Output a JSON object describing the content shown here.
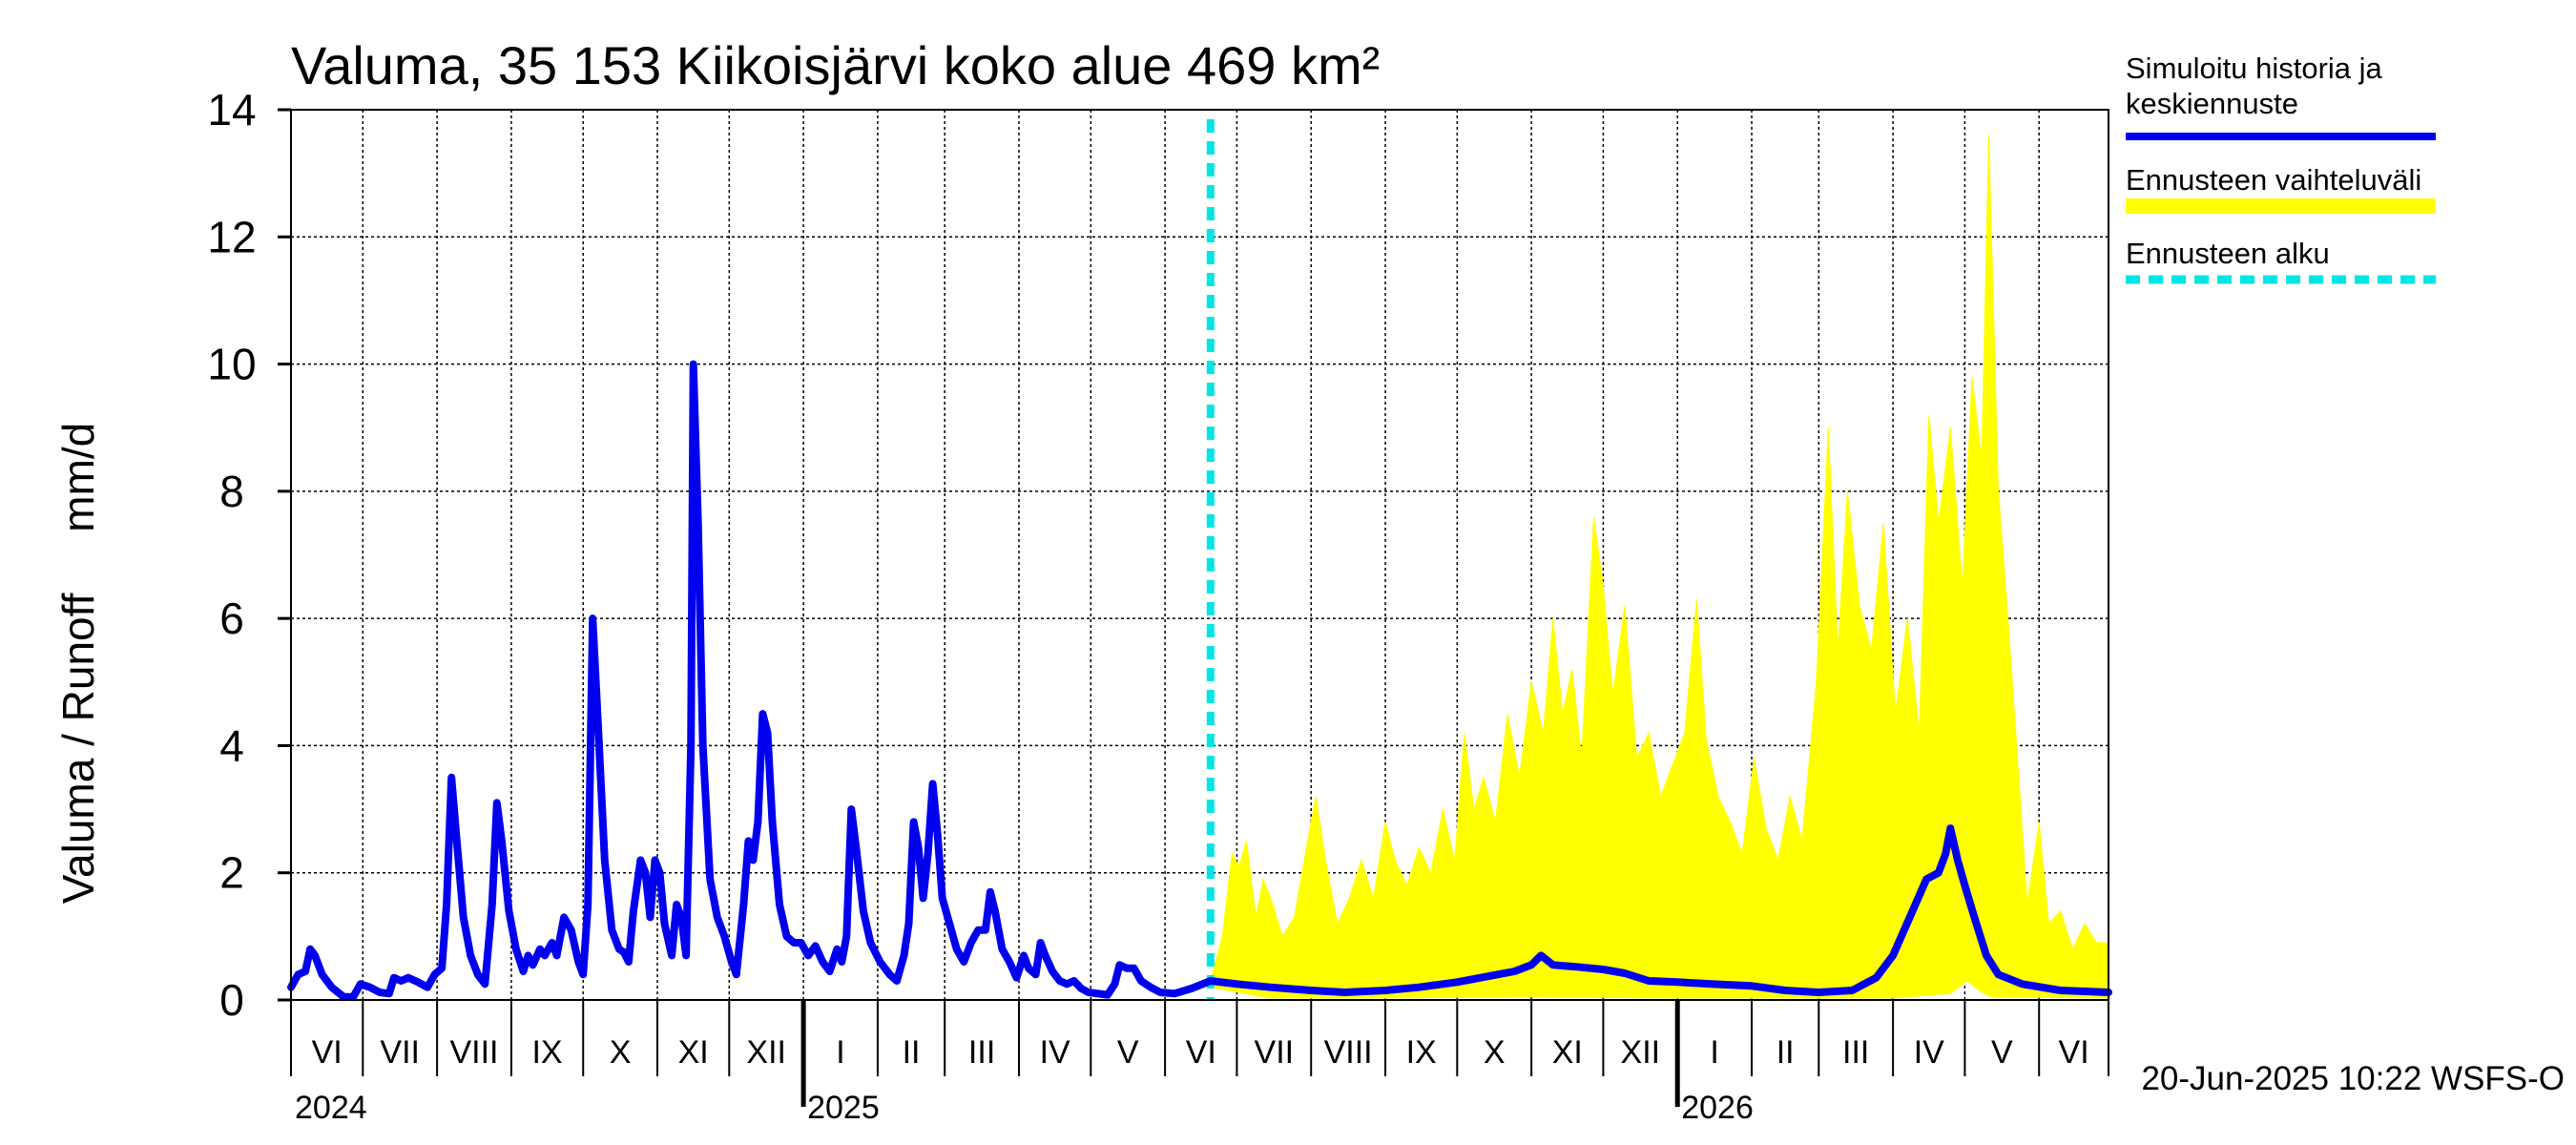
{
  "chart_data": {
    "type": "line",
    "title": "Valuma, 35 153 Kiikoisjärvi koko alue 469 km²",
    "ylabel": "Valuma / Runoff     mm/d",
    "ylim": [
      0,
      14
    ],
    "yticks": [
      0,
      2,
      4,
      6,
      8,
      10,
      12,
      14
    ],
    "xlim": [
      "2024-06-01",
      "2026-06-30"
    ],
    "grid": true,
    "legend_position": "right",
    "months": [
      "VI",
      "VII",
      "VIII",
      "IX",
      "X",
      "XI",
      "XII",
      "I",
      "II",
      "III",
      "IV",
      "V",
      "VI",
      "VII",
      "VIII",
      "IX",
      "X",
      "XI",
      "XII",
      "I",
      "II",
      "III",
      "IV",
      "V",
      "VI"
    ],
    "years": [
      {
        "label": "2024",
        "date": "2024-06-01"
      },
      {
        "label": "2025",
        "date": "2025-01-01"
      },
      {
        "label": "2026",
        "date": "2026-01-01"
      }
    ],
    "forecast_start": "2025-06-20",
    "footer": "20-Jun-2025 10:22 WSFS-O",
    "legend": [
      {
        "label": "Simuloitu historia ja keskiennuste",
        "color": "#0000ee",
        "style": "solid"
      },
      {
        "label": "Ennusteen vaihteluväli",
        "color": "#ffff00",
        "style": "band"
      },
      {
        "label": "Ennusteen alku",
        "color": "#00e5e5",
        "style": "dashed"
      }
    ],
    "series": [
      {
        "name": "Simuloitu historia ja keskiennuste",
        "color": "#0000ee",
        "points": [
          [
            "2024-06-01",
            0.2
          ],
          [
            "2024-06-04",
            0.4
          ],
          [
            "2024-06-07",
            0.45
          ],
          [
            "2024-06-09",
            0.8
          ],
          [
            "2024-06-11",
            0.7
          ],
          [
            "2024-06-14",
            0.4
          ],
          [
            "2024-06-18",
            0.2
          ],
          [
            "2024-06-23",
            0.05
          ],
          [
            "2024-06-27",
            0.05
          ],
          [
            "2024-06-30",
            0.25
          ],
          [
            "2024-07-04",
            0.2
          ],
          [
            "2024-07-08",
            0.12
          ],
          [
            "2024-07-12",
            0.1
          ],
          [
            "2024-07-14",
            0.35
          ],
          [
            "2024-07-17",
            0.3
          ],
          [
            "2024-07-20",
            0.35
          ],
          [
            "2024-07-24",
            0.28
          ],
          [
            "2024-07-28",
            0.2
          ],
          [
            "2024-07-31",
            0.4
          ],
          [
            "2024-08-03",
            0.5
          ],
          [
            "2024-08-05",
            1.5
          ],
          [
            "2024-08-07",
            3.5
          ],
          [
            "2024-08-09",
            2.6
          ],
          [
            "2024-08-12",
            1.3
          ],
          [
            "2024-08-15",
            0.7
          ],
          [
            "2024-08-18",
            0.4
          ],
          [
            "2024-08-21",
            0.25
          ],
          [
            "2024-08-24",
            1.5
          ],
          [
            "2024-08-26",
            3.1
          ],
          [
            "2024-08-28",
            2.5
          ],
          [
            "2024-08-31",
            1.4
          ],
          [
            "2024-09-03",
            0.8
          ],
          [
            "2024-09-06",
            0.45
          ],
          [
            "2024-09-08",
            0.7
          ],
          [
            "2024-09-10",
            0.55
          ],
          [
            "2024-09-13",
            0.8
          ],
          [
            "2024-09-15",
            0.7
          ],
          [
            "2024-09-18",
            0.9
          ],
          [
            "2024-09-20",
            0.7
          ],
          [
            "2024-09-23",
            1.3
          ],
          [
            "2024-09-26",
            1.1
          ],
          [
            "2024-09-29",
            0.6
          ],
          [
            "2024-10-01",
            0.4
          ],
          [
            "2024-10-03",
            1.5
          ],
          [
            "2024-10-05",
            6.0
          ],
          [
            "2024-10-07",
            4.5
          ],
          [
            "2024-10-10",
            2.2
          ],
          [
            "2024-10-13",
            1.1
          ],
          [
            "2024-10-16",
            0.8
          ],
          [
            "2024-10-18",
            0.75
          ],
          [
            "2024-10-20",
            0.6
          ],
          [
            "2024-10-22",
            1.4
          ],
          [
            "2024-10-25",
            2.2
          ],
          [
            "2024-10-27",
            2.0
          ],
          [
            "2024-10-29",
            1.3
          ],
          [
            "2024-10-31",
            2.2
          ],
          [
            "2024-11-02",
            2.0
          ],
          [
            "2024-11-04",
            1.2
          ],
          [
            "2024-11-07",
            0.7
          ],
          [
            "2024-11-09",
            1.5
          ],
          [
            "2024-11-11",
            1.3
          ],
          [
            "2024-11-13",
            0.7
          ],
          [
            "2024-11-15",
            4.0
          ],
          [
            "2024-11-16",
            10.0
          ],
          [
            "2024-11-18",
            7.5
          ],
          [
            "2024-11-20",
            4.0
          ],
          [
            "2024-11-23",
            1.9
          ],
          [
            "2024-11-26",
            1.3
          ],
          [
            "2024-11-29",
            1.0
          ],
          [
            "2024-12-02",
            0.6
          ],
          [
            "2024-12-04",
            0.4
          ],
          [
            "2024-12-07",
            1.5
          ],
          [
            "2024-12-09",
            2.5
          ],
          [
            "2024-12-11",
            2.2
          ],
          [
            "2024-12-13",
            2.8
          ],
          [
            "2024-12-15",
            4.5
          ],
          [
            "2024-12-17",
            4.2
          ],
          [
            "2024-12-19",
            2.8
          ],
          [
            "2024-12-22",
            1.5
          ],
          [
            "2024-12-25",
            1.0
          ],
          [
            "2024-12-28",
            0.9
          ],
          [
            "2024-12-31",
            0.9
          ],
          [
            "2025-01-03",
            0.7
          ],
          [
            "2025-01-06",
            0.85
          ],
          [
            "2025-01-09",
            0.6
          ],
          [
            "2025-01-12",
            0.45
          ],
          [
            "2025-01-15",
            0.8
          ],
          [
            "2025-01-17",
            0.6
          ],
          [
            "2025-01-19",
            1.0
          ],
          [
            "2025-01-21",
            3.0
          ],
          [
            "2025-01-23",
            2.4
          ],
          [
            "2025-01-26",
            1.4
          ],
          [
            "2025-01-29",
            0.9
          ],
          [
            "2025-02-02",
            0.6
          ],
          [
            "2025-02-06",
            0.4
          ],
          [
            "2025-02-09",
            0.3
          ],
          [
            "2025-02-12",
            0.7
          ],
          [
            "2025-02-14",
            1.2
          ],
          [
            "2025-02-16",
            2.8
          ],
          [
            "2025-02-18",
            2.4
          ],
          [
            "2025-02-20",
            1.6
          ],
          [
            "2025-02-22",
            2.3
          ],
          [
            "2025-02-24",
            3.4
          ],
          [
            "2025-02-26",
            2.6
          ],
          [
            "2025-02-28",
            1.6
          ],
          [
            "2025-03-03",
            1.2
          ],
          [
            "2025-03-06",
            0.8
          ],
          [
            "2025-03-09",
            0.6
          ],
          [
            "2025-03-12",
            0.9
          ],
          [
            "2025-03-15",
            1.1
          ],
          [
            "2025-03-18",
            1.1
          ],
          [
            "2025-03-20",
            1.7
          ],
          [
            "2025-03-22",
            1.4
          ],
          [
            "2025-03-25",
            0.8
          ],
          [
            "2025-03-28",
            0.6
          ],
          [
            "2025-03-31",
            0.35
          ],
          [
            "2025-04-03",
            0.7
          ],
          [
            "2025-04-05",
            0.5
          ],
          [
            "2025-04-08",
            0.4
          ],
          [
            "2025-04-10",
            0.9
          ],
          [
            "2025-04-12",
            0.7
          ],
          [
            "2025-04-15",
            0.45
          ],
          [
            "2025-04-18",
            0.3
          ],
          [
            "2025-04-21",
            0.25
          ],
          [
            "2025-04-24",
            0.3
          ],
          [
            "2025-04-27",
            0.18
          ],
          [
            "2025-04-30",
            0.12
          ],
          [
            "2025-05-04",
            0.1
          ],
          [
            "2025-05-08",
            0.08
          ],
          [
            "2025-05-11",
            0.25
          ],
          [
            "2025-05-13",
            0.55
          ],
          [
            "2025-05-16",
            0.5
          ],
          [
            "2025-05-19",
            0.5
          ],
          [
            "2025-05-22",
            0.3
          ],
          [
            "2025-05-26",
            0.2
          ],
          [
            "2025-05-30",
            0.12
          ],
          [
            "2025-06-05",
            0.1
          ],
          [
            "2025-06-12",
            0.18
          ],
          [
            "2025-06-20",
            0.3
          ],
          [
            "2025-07-01",
            0.25
          ],
          [
            "2025-07-15",
            0.2
          ],
          [
            "2025-08-01",
            0.15
          ],
          [
            "2025-08-15",
            0.12
          ],
          [
            "2025-09-01",
            0.15
          ],
          [
            "2025-09-15",
            0.2
          ],
          [
            "2025-10-01",
            0.28
          ],
          [
            "2025-10-15",
            0.38
          ],
          [
            "2025-10-25",
            0.45
          ],
          [
            "2025-11-01",
            0.55
          ],
          [
            "2025-11-05",
            0.7
          ],
          [
            "2025-11-10",
            0.55
          ],
          [
            "2025-11-20",
            0.52
          ],
          [
            "2025-12-01",
            0.48
          ],
          [
            "2025-12-10",
            0.42
          ],
          [
            "2025-12-20",
            0.3
          ],
          [
            "2026-01-01",
            0.28
          ],
          [
            "2026-01-15",
            0.25
          ],
          [
            "2026-02-01",
            0.22
          ],
          [
            "2026-02-15",
            0.15
          ],
          [
            "2026-03-01",
            0.12
          ],
          [
            "2026-03-15",
            0.15
          ],
          [
            "2026-03-25",
            0.35
          ],
          [
            "2026-04-01",
            0.7
          ],
          [
            "2026-04-08",
            1.3
          ],
          [
            "2026-04-15",
            1.9
          ],
          [
            "2026-04-20",
            2.0
          ],
          [
            "2026-04-23",
            2.3
          ],
          [
            "2026-04-25",
            2.7
          ],
          [
            "2026-04-28",
            2.2
          ],
          [
            "2026-05-01",
            1.8
          ],
          [
            "2026-05-05",
            1.3
          ],
          [
            "2026-05-10",
            0.7
          ],
          [
            "2026-05-15",
            0.4
          ],
          [
            "2026-05-25",
            0.25
          ],
          [
            "2026-06-10",
            0.15
          ],
          [
            "2026-06-30",
            0.12
          ]
        ]
      },
      {
        "name": "Ennusteen vaihteluväli",
        "color": "#ffff00",
        "upper": [
          [
            "2025-06-20",
            0.3
          ],
          [
            "2025-06-25",
            1.0
          ],
          [
            "2025-06-29",
            2.3
          ],
          [
            "2025-07-02",
            2.1
          ],
          [
            "2025-07-05",
            2.5
          ],
          [
            "2025-07-09",
            1.3
          ],
          [
            "2025-07-12",
            1.9
          ],
          [
            "2025-07-16",
            1.5
          ],
          [
            "2025-07-20",
            1.0
          ],
          [
            "2025-07-25",
            1.3
          ],
          [
            "2025-07-31",
            2.6
          ],
          [
            "2025-08-03",
            3.2
          ],
          [
            "2025-08-07",
            2.2
          ],
          [
            "2025-08-12",
            1.2
          ],
          [
            "2025-08-17",
            1.6
          ],
          [
            "2025-08-22",
            2.2
          ],
          [
            "2025-08-27",
            1.6
          ],
          [
            "2025-09-01",
            2.8
          ],
          [
            "2025-09-05",
            2.2
          ],
          [
            "2025-09-10",
            1.8
          ],
          [
            "2025-09-15",
            2.4
          ],
          [
            "2025-09-20",
            2.0
          ],
          [
            "2025-09-25",
            3.0
          ],
          [
            "2025-09-30",
            2.2
          ],
          [
            "2025-10-04",
            4.2
          ],
          [
            "2025-10-08",
            3.0
          ],
          [
            "2025-10-12",
            3.5
          ],
          [
            "2025-10-17",
            2.8
          ],
          [
            "2025-10-22",
            4.5
          ],
          [
            "2025-10-27",
            3.5
          ],
          [
            "2025-11-01",
            5.0
          ],
          [
            "2025-11-06",
            4.2
          ],
          [
            "2025-11-10",
            6.0
          ],
          [
            "2025-11-14",
            4.5
          ],
          [
            "2025-11-18",
            5.2
          ],
          [
            "2025-11-22",
            3.8
          ],
          [
            "2025-11-27",
            7.6
          ],
          [
            "2025-12-01",
            6.5
          ],
          [
            "2025-12-05",
            4.8
          ],
          [
            "2025-12-10",
            6.2
          ],
          [
            "2025-12-15",
            3.8
          ],
          [
            "2025-12-20",
            4.2
          ],
          [
            "2025-12-25",
            3.2
          ],
          [
            "2025-12-30",
            3.7
          ],
          [
            "2026-01-04",
            4.2
          ],
          [
            "2026-01-09",
            6.3
          ],
          [
            "2026-01-13",
            4.1
          ],
          [
            "2026-01-18",
            3.2
          ],
          [
            "2026-01-23",
            2.8
          ],
          [
            "2026-01-28",
            2.3
          ],
          [
            "2026-02-02",
            3.8
          ],
          [
            "2026-02-07",
            2.7
          ],
          [
            "2026-02-12",
            2.2
          ],
          [
            "2026-02-17",
            3.2
          ],
          [
            "2026-02-22",
            2.5
          ],
          [
            "2026-02-28",
            5.0
          ],
          [
            "2026-03-05",
            9.0
          ],
          [
            "2026-03-09",
            5.5
          ],
          [
            "2026-03-13",
            8.0
          ],
          [
            "2026-03-18",
            6.2
          ],
          [
            "2026-03-23",
            5.5
          ],
          [
            "2026-03-28",
            7.5
          ],
          [
            "2026-04-02",
            4.5
          ],
          [
            "2026-04-07",
            6.0
          ],
          [
            "2026-04-12",
            4.2
          ],
          [
            "2026-04-16",
            9.2
          ],
          [
            "2026-04-20",
            7.5
          ],
          [
            "2026-04-25",
            9.0
          ],
          [
            "2026-04-30",
            6.5
          ],
          [
            "2026-05-04",
            9.8
          ],
          [
            "2026-05-08",
            8.5
          ],
          [
            "2026-05-11",
            13.6
          ],
          [
            "2026-05-15",
            8.0
          ],
          [
            "2026-05-19",
            6.0
          ],
          [
            "2026-05-23",
            3.8
          ],
          [
            "2026-05-27",
            1.5
          ],
          [
            "2026-06-01",
            2.8
          ],
          [
            "2026-06-05",
            1.2
          ],
          [
            "2026-06-10",
            1.4
          ],
          [
            "2026-06-15",
            0.8
          ],
          [
            "2026-06-20",
            1.2
          ],
          [
            "2026-06-25",
            0.9
          ],
          [
            "2026-06-30",
            0.9
          ]
        ],
        "lower": [
          [
            "2025-06-20",
            0.2
          ],
          [
            "2025-07-15",
            0.03
          ],
          [
            "2025-09-01",
            0.03
          ],
          [
            "2025-11-01",
            0.05
          ],
          [
            "2026-01-01",
            0.03
          ],
          [
            "2026-04-01",
            0.03
          ],
          [
            "2026-04-25",
            0.1
          ],
          [
            "2026-05-02",
            0.3
          ],
          [
            "2026-05-07",
            0.15
          ],
          [
            "2026-05-12",
            0.05
          ],
          [
            "2026-06-30",
            0.03
          ]
        ]
      }
    ]
  }
}
